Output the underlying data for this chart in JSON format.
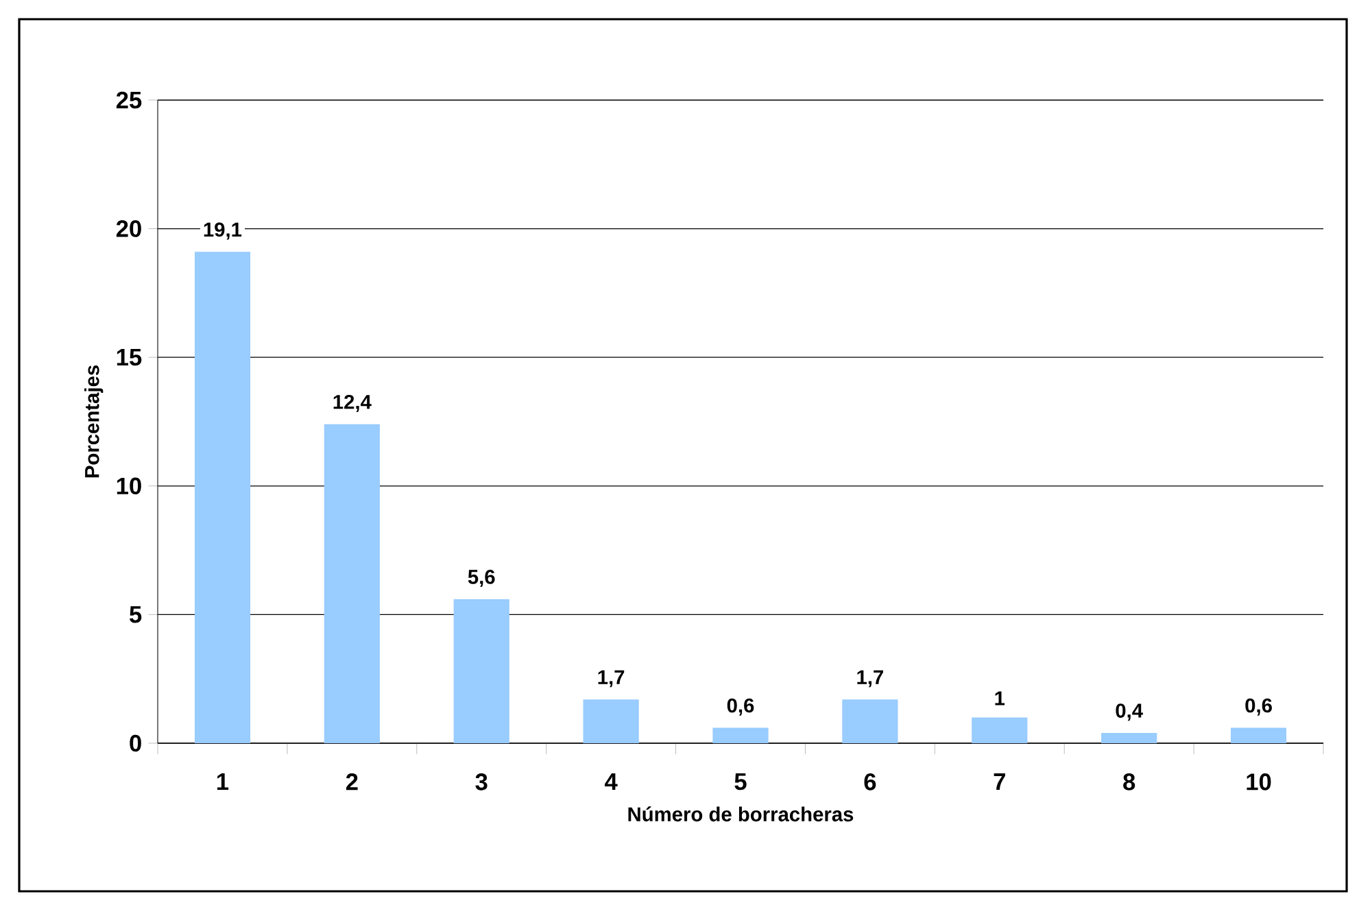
{
  "chart_data": {
    "type": "bar",
    "xlabel": "Número de borracheras",
    "ylabel": "Porcentajes",
    "categories": [
      "1",
      "2",
      "3",
      "4",
      "5",
      "6",
      "7",
      "8",
      "10"
    ],
    "values": [
      19.1,
      12.4,
      5.6,
      1.7,
      0.6,
      1.7,
      1,
      0.4,
      0.6
    ],
    "value_labels": [
      "19,1",
      "12,4",
      "5,6",
      "1,7",
      "0,6",
      "1,7",
      "1",
      "0,4",
      "0,6"
    ],
    "color": "#99ccff",
    "ylim": [
      0,
      25
    ],
    "yticks": [
      0,
      5,
      10,
      15,
      20,
      25
    ],
    "grid": "y"
  }
}
